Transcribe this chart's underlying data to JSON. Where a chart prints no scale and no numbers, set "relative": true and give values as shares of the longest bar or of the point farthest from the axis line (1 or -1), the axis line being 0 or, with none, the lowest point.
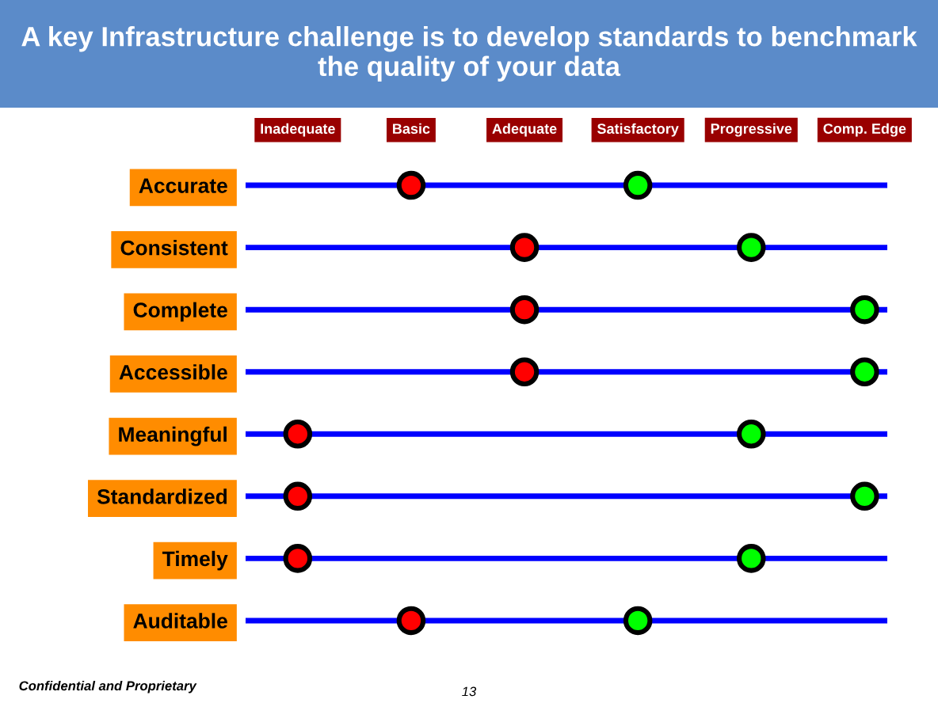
{
  "chart_data": {
    "type": "scatter",
    "orientation": "horizontal",
    "relative": true,
    "title": "A key Infrastructure challenge is to develop standards to benchmark the quality of your data",
    "categories": [
      "Accurate",
      "Consistent",
      "Complete",
      "Accessible",
      "Meaningful",
      "Standardized",
      "Timely",
      "Auditable"
    ],
    "series": [
      {
        "color": "#ff0000",
        "values": [
          0.2,
          0.4,
          0.4,
          0.4,
          0,
          0,
          0,
          0.2
        ]
      },
      {
        "color": "#00ff00",
        "values": [
          0.6,
          0.8,
          1,
          1,
          0.8,
          1,
          0.8,
          0.6
        ]
      }
    ],
    "grid": "y",
    "marker": "circle",
    "annotations": [
      "Inadequate",
      "Basic",
      "Adequate",
      "Satisfactory",
      "Progressive",
      "Comp. Edge",
      "Confidential and Proprietary",
      "13"
    ]
  }
}
